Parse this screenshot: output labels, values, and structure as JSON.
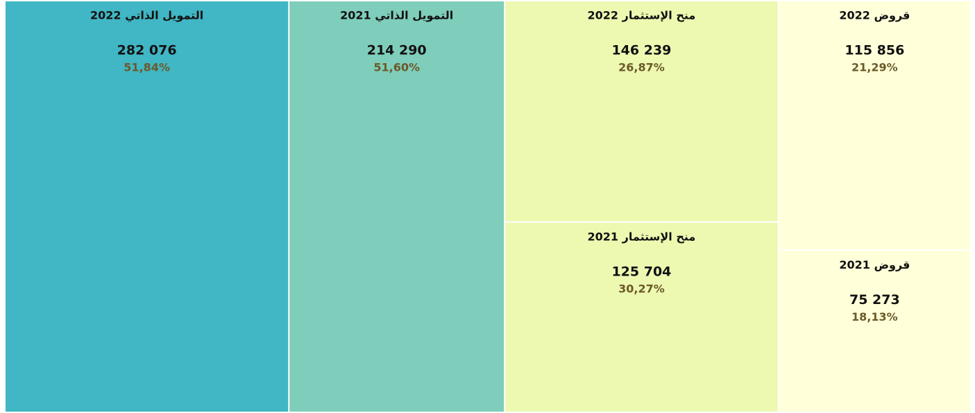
{
  "chart_data": {
    "type": "treemap",
    "categories": [
      "التمويل الذاتي 2022",
      "التمويل الذاتي 2021",
      "منح الإستثمار 2022",
      "منح الإستثمار 2021",
      "قروض 2022",
      "قروض 2021"
    ],
    "values": [
      282076,
      214290,
      146239,
      125704,
      115856,
      75273
    ],
    "value_labels": [
      "282 076",
      "214 290",
      "146 239",
      "125 704",
      "115 856",
      "75 273"
    ],
    "percents": [
      51.84,
      51.6,
      26.87,
      30.27,
      21.29,
      18.13
    ],
    "percent_labels": [
      "51,84%",
      "51,60%",
      "26,87%",
      "30,27%",
      "21,29%",
      "18,13%"
    ],
    "colors": [
      "#41b6c4",
      "#7fcdbb",
      "#edf8b1",
      "#edf8b1",
      "#ffffd9",
      "#ffffd9"
    ]
  }
}
